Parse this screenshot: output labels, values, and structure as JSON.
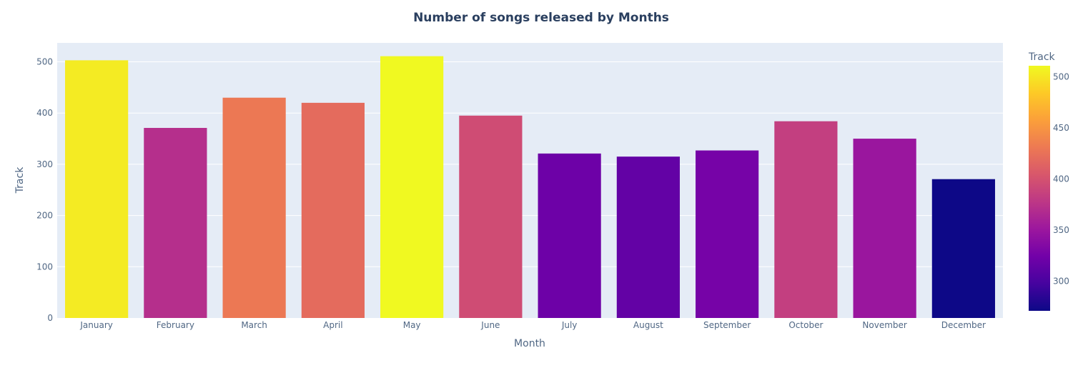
{
  "chart_data": {
    "type": "bar",
    "title": "Number of songs released by Months",
    "xlabel": "Month",
    "ylabel": "Track",
    "categories": [
      "January",
      "February",
      "March",
      "April",
      "May",
      "June",
      "July",
      "August",
      "September",
      "October",
      "November",
      "December"
    ],
    "values": [
      503,
      371,
      430,
      420,
      511,
      395,
      321,
      315,
      327,
      384,
      350,
      271
    ],
    "ylim": [
      0,
      537
    ],
    "yticks": [
      0,
      100,
      200,
      300,
      400,
      500
    ],
    "grid": true,
    "background_color": "#e5ecf6",
    "colorbar": {
      "title": "Track",
      "range": [
        271,
        511
      ],
      "ticks": [
        300,
        350,
        400,
        450,
        500
      ],
      "colorscale": "plasma",
      "colors": [
        "#0d0887",
        "#46039f",
        "#7201a8",
        "#9c179e",
        "#bd3786",
        "#d8576b",
        "#ed7953",
        "#fb9f3a",
        "#fdca26",
        "#f0f921"
      ]
    }
  }
}
